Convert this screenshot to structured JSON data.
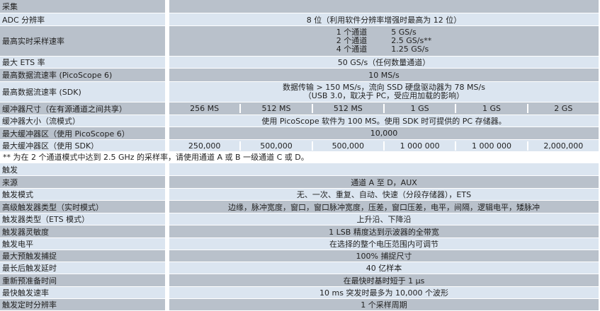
{
  "acquisition": {
    "title": "采集",
    "rows": [
      {
        "label": "ADC 分辨率",
        "value": "8 位（利用软件分辨率增强时最高为 12 位）"
      },
      {
        "label": "最高实时采样速率",
        "rates": [
          [
            "1 个通道",
            "5 GS/s"
          ],
          [
            "2 个通道",
            "2.5 GS/s**"
          ],
          [
            "4 个通道",
            "1.25 GS/s"
          ]
        ]
      },
      {
        "label": "最大 ETS 率",
        "value": "50 GS/s（任何数量通道）"
      },
      {
        "label": "最高数据流速率 (PicoScope 6)",
        "value": "10 MS/s"
      },
      {
        "label": "最高数据流速率 (SDK)",
        "value": "数据传输 > 150 MS/s，流向 SSD 硬盘驱动器为 78 MS/s",
        "value2": "（USB 3.0，取决于 PC，受应用加载的影响）"
      },
      {
        "label": "缓冲器尺寸（在有源通道之间共享）",
        "cells": [
          "256 MS",
          "512 MS",
          "512 MS",
          "1 GS",
          "1 GS",
          "2 GS"
        ]
      },
      {
        "label": "缓冲器大小（流模式）",
        "value": "使用 PicoScope 软件为 100 MS。使用 SDK 时可提供的 PC 存储器。"
      },
      {
        "label": "最大缓冲器区（使用 PicoScope 6）",
        "value": "10,000"
      },
      {
        "label": "最大缓冲器区（使用 SDK）",
        "cells": [
          "250,000",
          "500,000",
          "500,000",
          "1 000 000",
          "1 000 000",
          "2,000,000"
        ]
      }
    ]
  },
  "footnote": "** 为在 2 个通道模式中达到 2.5 GHz 的采样率，请使用通道 A 或 B 一级通道 C 或 D。",
  "trigger": {
    "title": "触发",
    "rows": [
      {
        "label": "来源",
        "value": "通道 A 至 D，AUX"
      },
      {
        "label": "触发模式",
        "value": "无、一次、重复、自动、快速（分段存储器），ETS"
      },
      {
        "label": "高级触发器类型（实时模式）",
        "value": "边缘，脉冲宽度，窗口，窗口脉冲宽度，压差，窗口压差，电平，间隔，逻辑电平，矮脉冲"
      },
      {
        "label": "触发器类型（ETS 模式）",
        "value": "上升沿、下降沿"
      },
      {
        "label": "触发器灵敏度",
        "value": "1 LSB 精度达到示波器的全带宽"
      },
      {
        "label": "触发电平",
        "value": "在选择的整个电压范围内可调节"
      },
      {
        "label": "最大预触发捕捉",
        "value": "100% 捕捉尺寸"
      },
      {
        "label": "最长后触发延时",
        "value": "40 亿样本"
      },
      {
        "label": "重新预准备时间",
        "value": "在最快时基时短于 1 µs"
      },
      {
        "label": "最快触发速率",
        "value": "10 ms 突发时最多为 10,000 个波形"
      },
      {
        "label": "触发定时分辨率",
        "value": "1 个采样周期"
      }
    ]
  },
  "colors": {
    "row_dark": "#b9c1cb",
    "row_light": "#dbe5f0"
  }
}
